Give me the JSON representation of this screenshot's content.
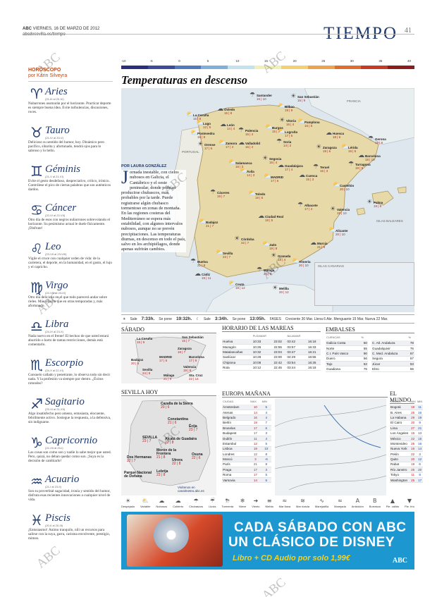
{
  "header": {
    "newspaper": "ABC",
    "date": "VIERNES, 16 DE MARZO DE 2012",
    "url": "abcdesevilla.es/tiempo",
    "section": "TIEMPO",
    "page": "41"
  },
  "horoscope": {
    "title": "HORÓSCOPO",
    "author": "por Karin Silveyra",
    "signs": [
      {
        "glyph": "♈",
        "name": "Aries",
        "date": "(21-III al 20-IV)",
        "text": "Nubarrones asomarán por el horizonte. Practicar deporte es siempre buena idea. Evite turbulencias, discusiones, roces."
      },
      {
        "glyph": "♉",
        "name": "Tauro",
        "date": "(21-IV al 20-V)",
        "text": "Delicioso su sentido del humor, hoy. Dinámico pero pacífico, sibarita y afortunado, tendrá ojos para lo sabroso y lo bello."
      },
      {
        "glyph": "♊",
        "name": "Géminis",
        "date": "(21-V al 21-VI)",
        "text": "Evite el gesto desdeñoso, despreciativo, crítico, irónico. Contrólese el pico de ciertas palabras que son auténticos dardos."
      },
      {
        "glyph": "♋",
        "name": "Cáncer",
        "date": "(22-VI al 22-VII)",
        "text": "Otro día de esos con negros nubarrones sobrevolando el horizonte. Su pesimismo actual le duele físicamente. ¡Disfrute!"
      },
      {
        "glyph": "♌",
        "name": "Leo",
        "date": "(23-VII al 23-VIII)",
        "text": "Vigile el cruce con cualquier orden de vida: de la carretera, el deporte, en la humanidad, en el gusto, el lujo y el capricho."
      },
      {
        "glyph": "♍",
        "name": "Virgo",
        "date": "(24-VIII al 23-IX)",
        "text": "Otro día delicioso en el que todo parecerá andar sobre rieles. Más sibarita que en otras temporadas y, más afortunado."
      },
      {
        "glyph": "♎",
        "name": "Libra",
        "date": "(24-IX al 23-X)",
        "text": "Nada nuevo en el frente! El bechoo de que usted estará aburrido o harto de tantas restricciones, demás está comentarlo."
      },
      {
        "glyph": "♏",
        "name": "Escorpio",
        "date": "(24-X al 22-XI)",
        "text": "Consuelo callado y penetrante, lo observa todo sin decir nada. Y la profesión va siempre por dentro. ¿Éxitos rotundos?"
      },
      {
        "glyph": "♐",
        "name": "Sagitario",
        "date": "(23-XI al 21-XII)",
        "text": "Algo insatisfecho pero ameno, entusiasta, elocuente, febrilmente activo. Sosiegue la respuesta, a la defensiva, sin indignarse."
      },
      {
        "glyph": "♑",
        "name": "Capricornio",
        "date": "(22-XII al 20-I)",
        "text": "Las cosas son como son y nadie lo sabe mejor que usted. Pero, quizá, no deban quedar como son. ¡Suya es la decisión de cambiarlo!"
      },
      {
        "glyph": "♒",
        "name": "Acuario",
        "date": "(21-I al 19-II)",
        "text": "Son su proverbial sagacidad, ironía y sentido del humor, disfruta esas recientes innovaciones a cualquier nivel de vida."
      },
      {
        "glyph": "♓",
        "name": "Piscis",
        "date": "(20-II al 20-III)",
        "text": "¡Entusiasmo! Ánimo tranquilo, nili un recursos para salirse con la suya, garra, carisma envolvente, prestigio, mimos."
      }
    ]
  },
  "scale": {
    "labels": [
      "-10",
      "-5",
      "0",
      "5",
      "10",
      "15",
      "20",
      "25",
      "30",
      "35",
      "40"
    ],
    "colors": [
      "#2b2e7d",
      "#3b4c9f",
      "#5479c1",
      "#7fb0d9",
      "#c3e2ee",
      "#f3f0b6",
      "#f6d070",
      "#eea24a",
      "#e06d30",
      "#c53b25",
      "#8d1c1a"
    ]
  },
  "headline": "Temperaturas en descenso",
  "article": {
    "byline": "POR LAURA GONZÁLEZ",
    "dropcap": "J",
    "text": "ornada inestable, con cielos nubosos en Galicia, el Cantábrico y el oeste peninsular, donde podrían producirse chubascos, más probables por la tarde. Puede registrarse algún chubasco tormentoso en zonas de montaña. En las regiones costeras del Mediterráneo se espera más estabilidad, con algunos intervalos nubosos, aunque no se prevén precipitaciones. Las temperaturas diurnas, en descenso en todo el país, salvo en los archipiélagos, donde apenas sufrirán cambios."
  },
  "map": {
    "labels": {
      "france": "FRANCIA",
      "portugal": "PORTUGAL",
      "baleares": "ISLAS BALEARES",
      "canarias": "ISLAS CANARIAS"
    },
    "cities": [
      {
        "name": "La Coruña",
        "t": "15 | 8"
      },
      {
        "name": "Oviedo",
        "t": "16 | 8"
      },
      {
        "name": "Santander",
        "t": "16 | 10"
      },
      {
        "name": "Bilbao",
        "t": "19 | 9"
      },
      {
        "name": "San Sebastián",
        "t": "15 | 9"
      },
      {
        "name": "Lugo",
        "t": "13 | 5"
      },
      {
        "name": "León",
        "t": "14 | 4"
      },
      {
        "name": "Palencia",
        "t": "15 | 4"
      },
      {
        "name": "Burgos",
        "t": "15 | 3"
      },
      {
        "name": "Vitoria",
        "t": "16 | 4"
      },
      {
        "name": "Pamplona",
        "t": "16 | 5"
      },
      {
        "name": "Huesca",
        "t": "18 | 6"
      },
      {
        "name": "Gerona",
        "t": "19 | 6"
      },
      {
        "name": "Pontevedra",
        "t": "16 | 8"
      },
      {
        "name": "Orense",
        "t": "17 | 6"
      },
      {
        "name": "Zamora",
        "t": "17 | 4"
      },
      {
        "name": "Valladolid",
        "t": "16 | 4"
      },
      {
        "name": "Soria",
        "t": "14 | 2"
      },
      {
        "name": "Logroño",
        "t": "17 | 5"
      },
      {
        "name": "Zaragoza",
        "t": "19 | 6"
      },
      {
        "name": "Lérida",
        "t": "19 | 5"
      },
      {
        "name": "Barcelona",
        "t": "18 | 10"
      },
      {
        "name": "Tarragona",
        "t": "19 | 9"
      },
      {
        "name": "Salamanca",
        "t": "16 | 3"
      },
      {
        "name": "Segovia",
        "t": "15 | 4"
      },
      {
        "name": "Ávila",
        "t": "14 | 3"
      },
      {
        "name": "Guadalajara",
        "t": "17 | 4"
      },
      {
        "name": "Teruel",
        "t": "16 | 3"
      },
      {
        "name": "Castellón",
        "t": "20 | 10"
      },
      {
        "name": "Palma",
        "t": "19 | 8"
      },
      {
        "name": "MADRID",
        "t": "17 | 6"
      },
      {
        "name": "Cuenca",
        "t": "15 | 3"
      },
      {
        "name": "Cáceres",
        "t": "19 | 7"
      },
      {
        "name": "Toledo",
        "t": "18 | 6"
      },
      {
        "name": "Valencia",
        "t": "19 | 10"
      },
      {
        "name": "Badajoz",
        "t": "21 | 7"
      },
      {
        "name": "Ciudad Real",
        "t": "18 | 5"
      },
      {
        "name": "Albacete",
        "t": "17 | 4"
      },
      {
        "name": "Alicante",
        "t": "20 | 10"
      },
      {
        "name": "Córdoba",
        "t": "22 | 7"
      },
      {
        "name": "Jaén",
        "t": "19 | 8"
      },
      {
        "name": "Murcia",
        "t": "21 | 8"
      },
      {
        "name": "Huelva",
        "t": "21 | 8"
      },
      {
        "name": "Sevilla",
        "t": "23 | 7"
      },
      {
        "name": "Granada",
        "t": "18 | 4"
      },
      {
        "name": "Almería",
        "t": "20 | 10"
      },
      {
        "name": "Cádiz",
        "t": "19 | 11"
      },
      {
        "name": "Málaga",
        "t": "20 | 9"
      },
      {
        "name": "Ceuta",
        "t": "18 | 12"
      },
      {
        "name": "Melilla",
        "t": "20 | 12"
      },
      {
        "name": "Santa Cruz de Tenerife",
        "t": "21 | 15"
      },
      {
        "name": "Las Palmas de Gran Canaria",
        "t": "22 | 15"
      }
    ]
  },
  "sun_strip": {
    "sunrise_label": "Sale",
    "sunrise": "7:33h.",
    "sunset_label": "Se pone",
    "sunset": "19:32h.",
    "moonrise_label": "Sale",
    "moonrise": "3:34h.",
    "moonset_label": "Se pone",
    "moonset": "13:05h.",
    "phases_label": "FASES",
    "phases": "Creciente 30 Mar.   Llena 6 Abr.   Menguante 15 Mar.   Nueva 22 Mar."
  },
  "sabado": {
    "title": "SÁBADO",
    "cities": [
      {
        "name": "La Coruña",
        "t": "15 | 9"
      },
      {
        "name": "San Sebastián",
        "t": "15 | 7"
      },
      {
        "name": "Zaragoza",
        "t": "18 | 7"
      },
      {
        "name": "Badajoz",
        "t": "20 | 6"
      },
      {
        "name": "MADRID",
        "t": "17 | 6"
      },
      {
        "name": "Barcelona",
        "t": "17 | 9"
      },
      {
        "name": "Valencia",
        "t": "19 | 9"
      },
      {
        "name": "Sevilla",
        "t": "24 | 8"
      },
      {
        "name": "Málaga",
        "t": "21 | 9"
      },
      {
        "name": "Sta. Cruz",
        "t": "22 | 14"
      }
    ]
  },
  "mareas": {
    "title": "HORARIO DE LAS MAREAS",
    "headers": [
      "",
      "PLEAMAR",
      "",
      "BAJAMAR",
      ""
    ],
    "rows": [
      [
        "Huelva",
        "10:33",
        "23:02",
        "03:42",
        "16:18"
      ],
      [
        "Mazagón",
        "10:26",
        "22:55",
        "03:57",
        "16:33"
      ],
      [
        "Matalascañas",
        "10:32",
        "23:04",
        "03:47",
        "16:21"
      ],
      [
        "Sanlúcar",
        "10:28",
        "23:00",
        "04:29",
        "16:55"
      ],
      [
        "Chipiona",
        "10:08",
        "22:42",
        "03:54",
        "16:25"
      ],
      [
        "Rota",
        "10:12",
        "22:45",
        "03:44",
        "16:18"
      ]
    ]
  },
  "embalses": {
    "title": "EMBALSES",
    "left_headers": [
      "CUENCAS",
      "%"
    ],
    "right_headers": [
      "",
      "%"
    ],
    "left": [
      [
        "Galicia Costa",
        "50"
      ],
      [
        "Norte",
        "55"
      ],
      [
        "C.I. País Vasco",
        "90"
      ],
      [
        "Duero",
        "56"
      ],
      [
        "Tajo",
        "52"
      ],
      [
        "Guadiana",
        "76"
      ]
    ],
    "right": [
      [
        "C. Atl. Andaluza",
        "78"
      ],
      [
        "Guadalquivir",
        "76"
      ],
      [
        "C. Med. Andaluza",
        "67"
      ],
      [
        "Segura",
        "57"
      ],
      [
        "Júcar",
        "53"
      ],
      [
        "Ebro",
        "55"
      ]
    ]
  },
  "sevilla": {
    "title": "SEVILLA HOY",
    "towns": [
      {
        "name": "Cazalla de la Sierra",
        "t": "20 | 6"
      },
      {
        "name": "Constantina",
        "t": "21 | 6"
      },
      {
        "name": "Écija",
        "t": "23 | 7"
      },
      {
        "name": "SEVILLA",
        "t": "23 | 7"
      },
      {
        "name": "Alcalá de Guadaíra",
        "t": "22 | 8"
      },
      {
        "name": "Morón de la Frontera",
        "t": "21 | 8"
      },
      {
        "name": "Dos Hermanas",
        "t": "22 | 7"
      },
      {
        "name": "Utrera",
        "t": "22 | 8"
      },
      {
        "name": "Osuna",
        "t": "22 | 6"
      },
      {
        "name": "Lebrija",
        "t": "23 | 8"
      },
      {
        "name": "Parque Nacional de Doñana",
        "t": ""
      }
    ],
    "footer": "Visítenos en canalmeteo.abc.es"
  },
  "europa": {
    "title": "EUROPA MAÑANA",
    "headers": [
      "CIUDAD",
      "MAX",
      "MIN"
    ],
    "rows": [
      [
        "Ámsterdam",
        "10",
        "5"
      ],
      [
        "Atenas",
        "14",
        "4"
      ],
      [
        "Belgrado",
        "16",
        "4"
      ],
      [
        "Berlín",
        "19",
        "7"
      ],
      [
        "Bruselas",
        "17",
        "6"
      ],
      [
        "Budapest",
        "17",
        "3"
      ],
      [
        "Dublín",
        "11",
        "4"
      ],
      [
        "Estambul",
        "12",
        "5"
      ],
      [
        "Lisboa",
        "19",
        "10"
      ],
      [
        "Londres",
        "12",
        "8"
      ],
      [
        "Moscú",
        "3",
        "-6"
      ],
      [
        "París",
        "21",
        "8"
      ],
      [
        "Praga",
        "17",
        "3"
      ],
      [
        "Roma",
        "17",
        "5"
      ],
      [
        "Varsovia",
        "14",
        "6"
      ]
    ]
  },
  "mundo": {
    "title": "EL MUNDO",
    "headers": [
      "CIUDAD",
      "MAX",
      "MIN"
    ],
    "rows": [
      [
        "Bogotá",
        "19",
        "11"
      ],
      [
        "B. Aires",
        "25",
        "16"
      ],
      [
        "La Habana",
        "29",
        "19"
      ],
      [
        "El Cairo",
        "20",
        "9"
      ],
      [
        "Lima",
        "27",
        "21"
      ],
      [
        "Los Ángeles",
        "16",
        "13"
      ],
      [
        "México",
        "22",
        "15"
      ],
      [
        "Montevideo",
        "25",
        "16"
      ],
      [
        "Nueva York",
        "16",
        "14"
      ],
      [
        "Pekín",
        "22",
        "3"
      ],
      [
        "Quito",
        "20",
        "12"
      ],
      [
        "Rabat",
        "19",
        "6"
      ],
      [
        "Río Janeiro",
        "25",
        "20"
      ],
      [
        "Tokyo",
        "11",
        "8"
      ],
      [
        "Washington",
        "25",
        "17"
      ]
    ]
  },
  "legend": [
    {
      "icon": "☀",
      "label": "Despejado"
    },
    {
      "icon": "⛅",
      "label": "Variable"
    },
    {
      "icon": "☁",
      "label": "Nubosos"
    },
    {
      "icon": "☁",
      "label": "Cubierto"
    },
    {
      "icon": "☂",
      "label": "Chubascos"
    },
    {
      "icon": "☔",
      "label": "Lluvia"
    },
    {
      "icon": "⛈",
      "label": "Tormenta"
    },
    {
      "icon": "❄",
      "label": "Nieve"
    },
    {
      "icon": "➜",
      "label": "Viento"
    },
    {
      "icon": "≡",
      "label": "Niebla"
    },
    {
      "icon": "≈",
      "label": "Mar llana"
    },
    {
      "icon": "≋",
      "label": "Mar rizada"
    },
    {
      "icon": "∿",
      "label": "Marejadilla"
    },
    {
      "icon": "≈",
      "label": "Marejada"
    },
    {
      "icon": "A",
      "label": "Anticiclón"
    },
    {
      "icon": "B",
      "label": "Borrasca"
    },
    {
      "icon": "▲",
      "label": "Fte. cálido"
    },
    {
      "icon": "▼",
      "label": "Fte. frío"
    }
  ],
  "ad": {
    "line1": "CADA SÁBADO CON ABC",
    "line2": "UN CLÁSICO DE DISNEY",
    "line3": "Libro + CD Audio por solo 1,99€",
    "logo": "ABC"
  },
  "watermark": "ABC"
}
